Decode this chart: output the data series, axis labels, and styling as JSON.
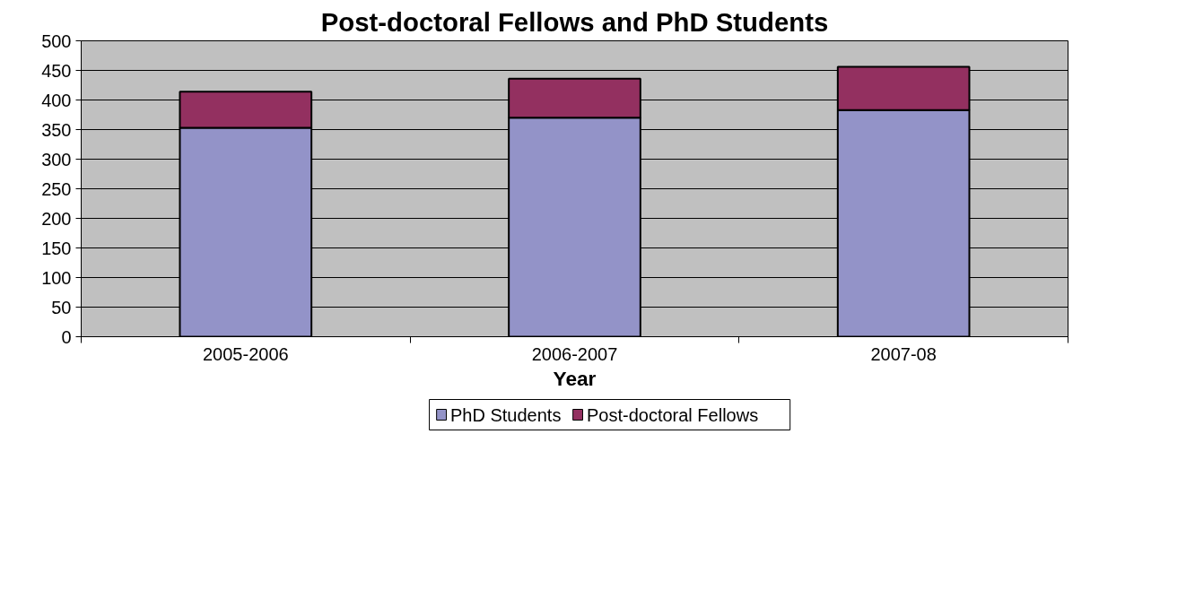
{
  "chart_data": {
    "type": "bar",
    "title": "Post-doctoral Fellows and PhD Students",
    "xlabel": "Year",
    "categories": [
      "2005-2006",
      "2006-2007",
      "2007-08"
    ],
    "stacked": true,
    "series": [
      {
        "name": "PhD Students",
        "color": "#9393c8",
        "values": [
          353,
          370,
          383
        ]
      },
      {
        "name": "Post-doctoral Fellows",
        "color": "#933060",
        "values": [
          61,
          66,
          73
        ]
      }
    ],
    "ylim": [
      0,
      500
    ],
    "yticks": [
      0,
      50,
      100,
      150,
      200,
      250,
      300,
      350,
      400,
      450,
      500
    ],
    "grid": "y",
    "legend": "bottom"
  }
}
